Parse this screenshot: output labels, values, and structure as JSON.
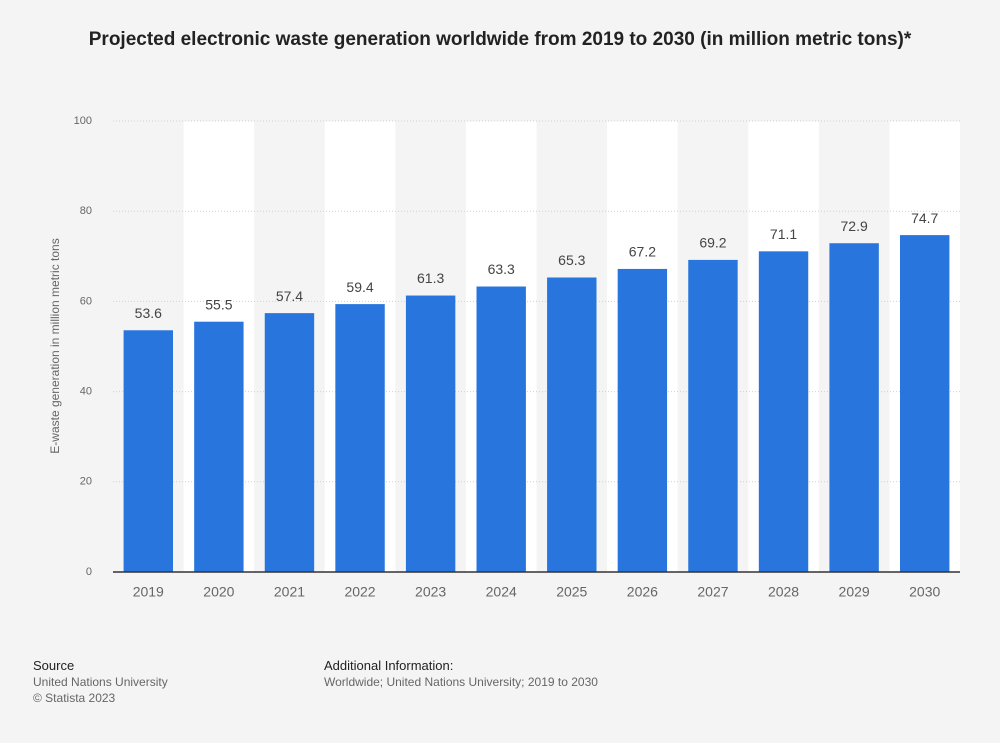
{
  "chart_data": {
    "type": "bar",
    "title": "Projected electronic waste generation worldwide from 2019 to 2030 (in million metric tons)*",
    "y_label": "E-waste generation in million metric tons",
    "categories": [
      "2019",
      "2020",
      "2021",
      "2022",
      "2023",
      "2024",
      "2025",
      "2026",
      "2027",
      "2028",
      "2029",
      "2030"
    ],
    "values": [
      53.6,
      55.5,
      57.4,
      59.4,
      61.3,
      63.3,
      65.3,
      67.2,
      69.2,
      71.1,
      72.9,
      74.7
    ],
    "color": "#2876dd",
    "ylim": [
      0,
      100
    ],
    "yticks": [
      0,
      20,
      40,
      60,
      80,
      100
    ],
    "grid": true
  },
  "footer": {
    "source_heading": "Source",
    "source_lines": [
      "United Nations University",
      "© Statista 2023"
    ],
    "info_heading": "Additional Information:",
    "info_text": "Worldwide; United Nations University; 2019 to 2030"
  }
}
